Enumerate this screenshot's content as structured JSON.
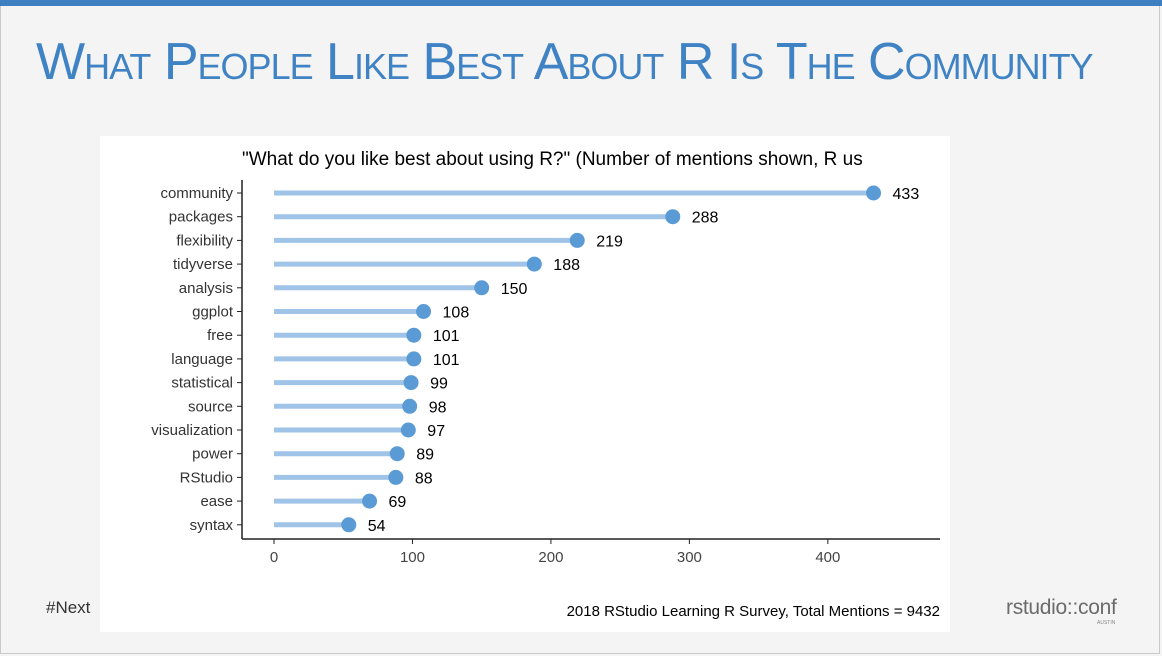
{
  "slide": {
    "title": "What People Like Best About R Is The Community",
    "hashtag": "#Next",
    "brand": "rstudio::conf",
    "brand_sub": "AUSTIN"
  },
  "colors": {
    "accent": "#3f83c4",
    "stem": "#9fc4e8",
    "dot": "#5b9bd5",
    "axis": "#222222"
  },
  "chart_data": {
    "type": "lollipop",
    "title": "\"What do you like best about using R?\" (Number of mentions shown, R us",
    "caption": "2018 RStudio Learning R Survey, Total Mentions = 9432",
    "xlabel": "",
    "ylabel": "",
    "xlim": [
      0,
      465
    ],
    "xticks": [
      0,
      100,
      200,
      300,
      400
    ],
    "grid": false,
    "categories": [
      "community",
      "packages",
      "flexibility",
      "tidyverse",
      "analysis",
      "ggplot",
      "free",
      "language",
      "statistical",
      "source",
      "visualization",
      "power",
      "RStudio",
      "ease",
      "syntax"
    ],
    "values": [
      433,
      288,
      219,
      188,
      150,
      108,
      101,
      101,
      99,
      98,
      97,
      89,
      88,
      69,
      54
    ]
  }
}
